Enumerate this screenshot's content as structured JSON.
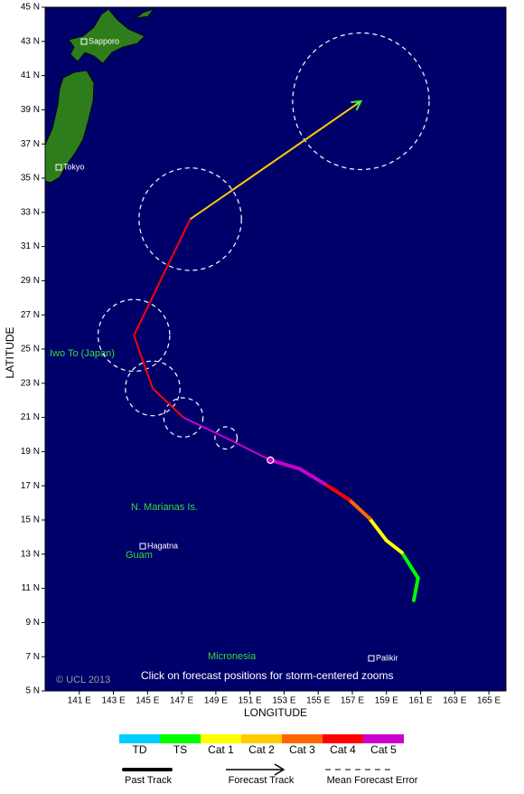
{
  "chart_data": {
    "type": "track-map",
    "x_label": "LONGITUDE",
    "y_label": "LATITUDE",
    "xlim": [
      139,
      166
    ],
    "ylim": [
      5,
      45
    ],
    "xticks": [
      {
        "value": 141,
        "label": "141 E"
      },
      {
        "value": 143,
        "label": "143 E"
      },
      {
        "value": 145,
        "label": "145 E"
      },
      {
        "value": 147,
        "label": "147 E"
      },
      {
        "value": 149,
        "label": "149 E"
      },
      {
        "value": 151,
        "label": "151 E"
      },
      {
        "value": 153,
        "label": "153 E"
      },
      {
        "value": 155,
        "label": "155 E"
      },
      {
        "value": 157,
        "label": "157 E"
      },
      {
        "value": 159,
        "label": "159 E"
      },
      {
        "value": 161,
        "label": "161 E"
      },
      {
        "value": 163,
        "label": "163 E"
      },
      {
        "value": 165,
        "label": "165 E"
      }
    ],
    "yticks": [
      {
        "value": 5,
        "label": "5 N"
      },
      {
        "value": 7,
        "label": "7 N"
      },
      {
        "value": 9,
        "label": "9 N"
      },
      {
        "value": 11,
        "label": "11 N"
      },
      {
        "value": 13,
        "label": "13 N"
      },
      {
        "value": 15,
        "label": "15 N"
      },
      {
        "value": 17,
        "label": "17 N"
      },
      {
        "value": 19,
        "label": "19 N"
      },
      {
        "value": 21,
        "label": "21 N"
      },
      {
        "value": 23,
        "label": "23 N"
      },
      {
        "value": 25,
        "label": "25 N"
      },
      {
        "value": 27,
        "label": "27 N"
      },
      {
        "value": 29,
        "label": "29 N"
      },
      {
        "value": 31,
        "label": "31 N"
      },
      {
        "value": 33,
        "label": "33 N"
      },
      {
        "value": 35,
        "label": "35 N"
      },
      {
        "value": 37,
        "label": "37 N"
      },
      {
        "value": 39,
        "label": "39 N"
      },
      {
        "value": 41,
        "label": "41 N"
      },
      {
        "value": 43,
        "label": "43 N"
      },
      {
        "value": 45,
        "label": "45 N"
      }
    ],
    "categories": [
      "TD",
      "TS",
      "Cat 1",
      "Cat 2",
      "Cat 3",
      "Cat 4",
      "Cat 5"
    ],
    "colors": [
      "#00ccff",
      "#00ff00",
      "#ffff00",
      "#ffcc00",
      "#ff6600",
      "#ff0000",
      "#cc00cc"
    ],
    "past_track": {
      "lon": [
        160.6,
        160.85,
        159.9,
        159.0,
        158.0,
        156.8,
        155.4,
        153.9,
        152.2
      ],
      "lat": [
        10.3,
        11.6,
        13.1,
        13.8,
        15.1,
        16.2,
        17.1,
        18.0,
        18.5
      ],
      "category": [
        "TD",
        "TS",
        "TS",
        "Cat 1",
        "Cat 1",
        "Cat 3",
        "Cat 4",
        "Cat 5",
        "Cat 5"
      ]
    },
    "forecast_track": {
      "lon": [
        149.6,
        147.1,
        145.3,
        144.2,
        147.5,
        157.5
      ],
      "lat": [
        19.8,
        21.0,
        22.7,
        25.8,
        32.6,
        39.5
      ],
      "category": [
        "Cat 5",
        "Cat 4",
        "Cat 4",
        "Cat 4",
        "Cat 2",
        "Cat 2"
      ],
      "error_radius": [
        0.65,
        1.15,
        1.6,
        2.1,
        3.0,
        4.0
      ]
    },
    "cities": [
      "Sapporo",
      "Tokyo",
      "Hagatna",
      "Palikir"
    ],
    "regions": [
      "Iwo To (Japan)",
      "N. Marianas Is.",
      "Guam",
      "Micronesia"
    ],
    "copyright": "© UCL 2013",
    "note": "Click on forecast positions for storm-centered zooms",
    "key": {
      "past": "Past Track",
      "forecast": "Forecast Track",
      "error": "Mean Forecast Error"
    }
  }
}
